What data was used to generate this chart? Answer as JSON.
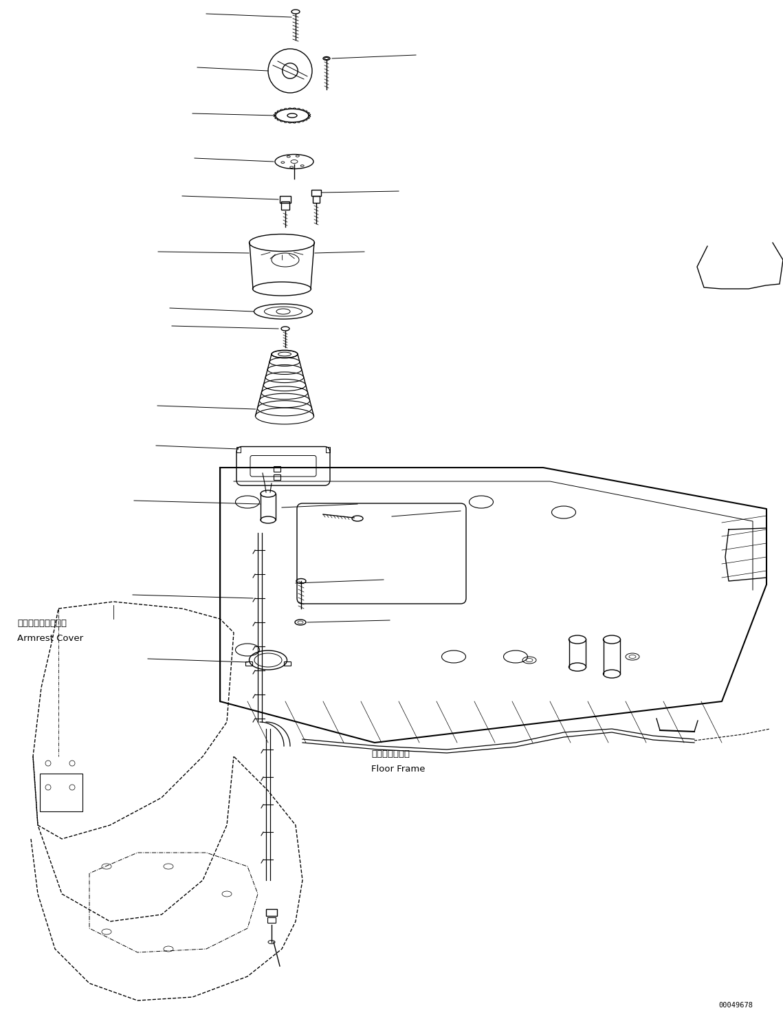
{
  "bg_color": "#ffffff",
  "line_color": "#000000",
  "fig_width": 11.39,
  "fig_height": 14.79,
  "dpi": 100,
  "part_number": "00049678",
  "label_armrest_jp": "アームレストカバー",
  "label_armrest_en": "Armrest Cover",
  "label_floor_jp": "フロアフレーム",
  "label_floor_en": "Floor Frame"
}
